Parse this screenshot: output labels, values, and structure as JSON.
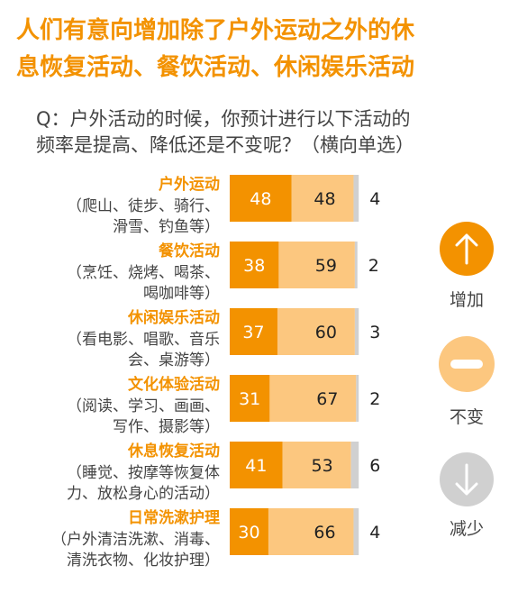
{
  "title_line1": "人们有意向增加除了户外运动之外的休",
  "title_line2": "息恢复活动、餐饮活动、休闲娱乐活动",
  "question_line1": "Q：户外活动的时候，你预计进行以下活动的",
  "question_line2": "频率是提高、降低还是不变呢？（横向单选）",
  "legend": {
    "increase": "增加",
    "nochange": "不变",
    "decrease": "减少"
  },
  "colors": {
    "increase": "#f39200",
    "nochange": "#fcc77f",
    "decrease": "#d0d0d0",
    "accent": "#f39200",
    "text": "#444444"
  },
  "chart_data": {
    "type": "bar",
    "stacked": true,
    "orientation": "horizontal",
    "categories": [
      {
        "name": "户外运动",
        "desc": [
          "（爬山、徒步、骑行、",
          "滑雪、钓鱼等）"
        ]
      },
      {
        "name": "餐饮活动",
        "desc": [
          "（烹饪、烧烤、喝茶、",
          "喝咖啡等）"
        ]
      },
      {
        "name": "休闲娱乐活动",
        "desc": [
          "（看电影、唱歌、音乐",
          "会、桌游等）"
        ]
      },
      {
        "name": "文化体验活动",
        "desc": [
          "（阅读、学习、画画、",
          "写作、摄影等）"
        ]
      },
      {
        "name": "休息恢复活动",
        "desc": [
          "（睡觉、按摩等恢复体",
          "力、放松身心的活动）"
        ]
      },
      {
        "name": "日常洗漱护理",
        "desc": [
          "（户外清洁洗漱、消毒、",
          "清洗衣物、化妆护理）"
        ]
      }
    ],
    "series": [
      {
        "name": "增加",
        "values": [
          48,
          38,
          37,
          31,
          41,
          30
        ]
      },
      {
        "name": "不变",
        "values": [
          48,
          59,
          60,
          67,
          53,
          66
        ]
      },
      {
        "name": "减少",
        "values": [
          4,
          2,
          3,
          2,
          6,
          4
        ]
      }
    ]
  }
}
